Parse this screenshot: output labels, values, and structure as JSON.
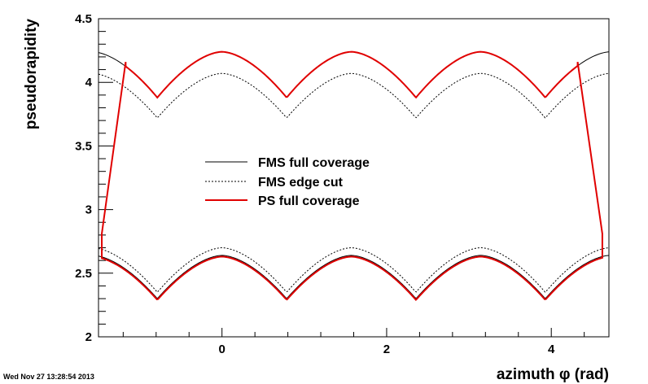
{
  "timestamp": "Wed Nov 27 13:28:54 2013",
  "chart_data": {
    "type": "line",
    "title": "",
    "xlabel": "azimuth φ (rad)",
    "ylabel": "pseudorapidity",
    "xlim": [
      -1.5,
      4.7
    ],
    "ylim": [
      2.0,
      4.5
    ],
    "xticks": [
      0,
      2,
      4
    ],
    "xtick_labels": [
      "0",
      "2",
      "4"
    ],
    "yticks": [
      2,
      2.5,
      3,
      3.5,
      4,
      4.5
    ],
    "ytick_labels": [
      "2",
      "2.5",
      "3",
      "3.5",
      "4",
      "4.5"
    ],
    "grid": false,
    "legend_position": "center-left",
    "series": [
      {
        "name": "FMS full coverage",
        "style": "solid",
        "color": "#000000",
        "outer_peak": 4.24,
        "outer_valley": 3.88,
        "inner_peak": 2.64,
        "inner_valley": 2.3
      },
      {
        "name": "FMS edge cut",
        "style": "dotted",
        "color": "#000000",
        "outer_peak": 4.07,
        "outer_valley": 3.72,
        "inner_peak": 2.7,
        "inner_valley": 2.35
      },
      {
        "name": "PS full coverage",
        "style": "solid",
        "color": "#e00000",
        "outer_peak": 4.24,
        "outer_valley": 3.88,
        "inner_peak": 2.63,
        "inner_valley": 2.29,
        "phi_range": [
          -1.46,
          4.42
        ],
        "left_edge": [
          [
            -1.46,
            2.81
          ],
          [
            -1.17,
            4.16
          ]
        ],
        "right_edge": [
          [
            4.32,
            4.16
          ],
          [
            4.62,
            2.81
          ]
        ]
      }
    ]
  }
}
